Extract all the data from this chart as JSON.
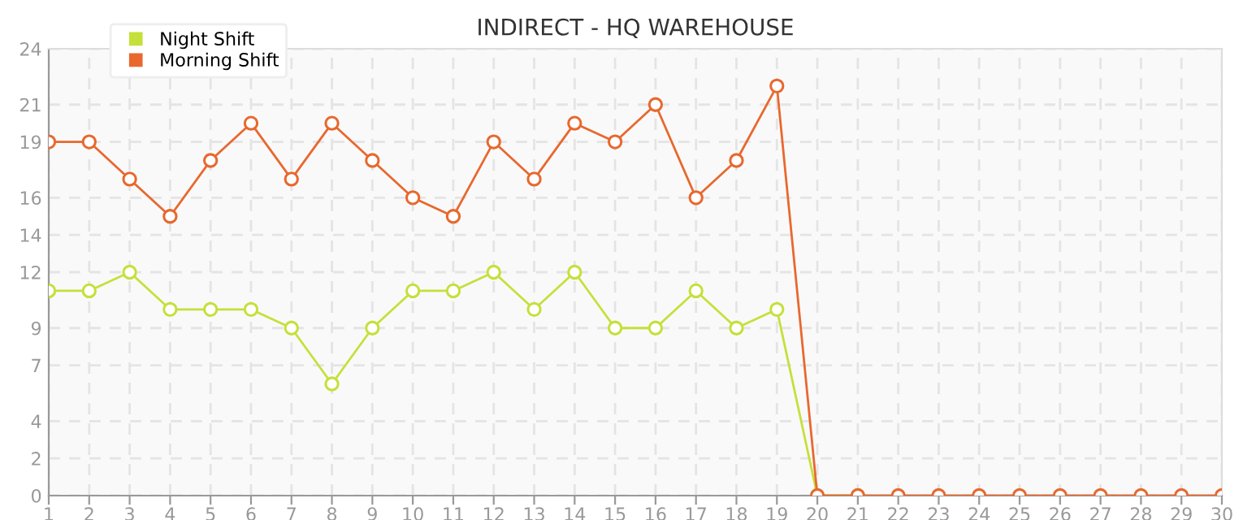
{
  "chart_data": {
    "type": "line",
    "title": "INDIRECT - HQ WAREHOUSE",
    "x": [
      1,
      2,
      3,
      4,
      5,
      6,
      7,
      8,
      9,
      10,
      11,
      12,
      13,
      14,
      15,
      16,
      17,
      18,
      19,
      20,
      21,
      22,
      23,
      24,
      25,
      26,
      27,
      28,
      29,
      30
    ],
    "series": [
      {
        "name": "Night Shift",
        "color": "#c5e03a",
        "values": [
          11,
          11,
          12,
          10,
          10,
          10,
          9,
          6,
          9,
          11,
          11,
          12,
          10,
          12,
          9,
          9,
          11,
          9,
          10,
          0,
          0,
          null,
          null,
          null,
          null,
          null,
          null,
          null,
          null,
          null
        ]
      },
      {
        "name": "Morning Shift",
        "color": "#e8682e",
        "values": [
          19,
          19,
          17,
          15,
          18,
          20,
          17,
          20,
          18,
          16,
          15,
          19,
          17,
          20,
          19,
          21,
          16,
          18,
          22,
          0,
          0,
          0,
          0,
          0,
          0,
          0,
          0,
          0,
          0,
          0
        ]
      }
    ],
    "xlim": [
      1,
      30
    ],
    "xticks": [
      1,
      2,
      3,
      4,
      5,
      6,
      7,
      8,
      9,
      10,
      11,
      12,
      13,
      14,
      15,
      16,
      17,
      18,
      19,
      20,
      21,
      22,
      23,
      24,
      25,
      26,
      27,
      28,
      29,
      30
    ],
    "ylim": [
      0,
      24
    ],
    "yticks": [
      0,
      2,
      4,
      7,
      9,
      12,
      14,
      16,
      19,
      21,
      24
    ],
    "grid": true,
    "legend": "top left",
    "marker": "circle",
    "line_style": "solid"
  }
}
